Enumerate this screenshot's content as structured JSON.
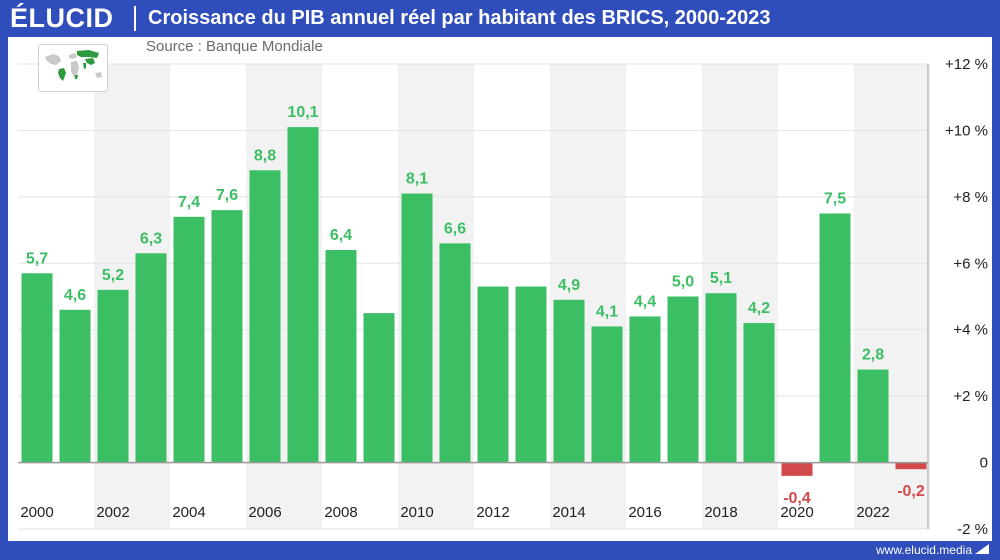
{
  "header": {
    "brand": "ÉLUCID",
    "title": "Croissance du PIB annuel réel par habitant des BRICS, 2000-2023"
  },
  "source": "Source : Banque Mondiale",
  "footer": {
    "url": "www.elucid.media"
  },
  "icons": {
    "map": "world-map-brics-icon",
    "footer": "elucid-arrow-icon"
  },
  "colors": {
    "positive": "#3cbf64",
    "negative": "#d2494b",
    "brand": "#2f4dbb",
    "band": "#f2f2f2"
  },
  "chart_data": {
    "type": "bar",
    "title": "Croissance du PIB annuel réel par habitant des BRICS, 2000-2023",
    "categories": [
      "2000",
      "2001",
      "2002",
      "2003",
      "2004",
      "2005",
      "2006",
      "2007",
      "2008",
      "2009",
      "2010",
      "2011",
      "2012",
      "2013",
      "2014",
      "2015",
      "2016",
      "2017",
      "2018",
      "2019",
      "2020",
      "2021",
      "2022",
      "2023"
    ],
    "values": [
      5.7,
      4.6,
      5.2,
      6.3,
      7.4,
      7.6,
      8.8,
      10.1,
      6.4,
      4.5,
      8.1,
      6.6,
      5.3,
      5.3,
      4.9,
      4.1,
      4.4,
      5.0,
      5.1,
      4.2,
      -0.4,
      7.5,
      2.8,
      -0.2
    ],
    "data_labels": [
      "5,7",
      "4,6",
      "5,2",
      "6,3",
      "7,4",
      "7,6",
      "8,8",
      "10,1",
      "6,4",
      "",
      "8,1",
      "6,6",
      "",
      "",
      "4,9",
      "4,1",
      "4,4",
      "5,0",
      "5,1",
      "4,2",
      "-0,4",
      "7,5",
      "2,8",
      "-0,2"
    ],
    "x_tick_labels": [
      "2000",
      "2002",
      "2004",
      "2006",
      "2008",
      "2010",
      "2012",
      "2014",
      "2016",
      "2018",
      "2020",
      "2022"
    ],
    "y_tick_labels": [
      "+12 %",
      "+10 %",
      "+8 %",
      "+6 %",
      "+4 %",
      "+2 %",
      "0",
      "-2 %"
    ],
    "y_ticks": [
      12,
      10,
      8,
      6,
      4,
      2,
      0,
      -2
    ],
    "ylim": [
      -2,
      12
    ],
    "y_axis_position": "right",
    "grid": true,
    "xlabel": "",
    "ylabel": ""
  }
}
